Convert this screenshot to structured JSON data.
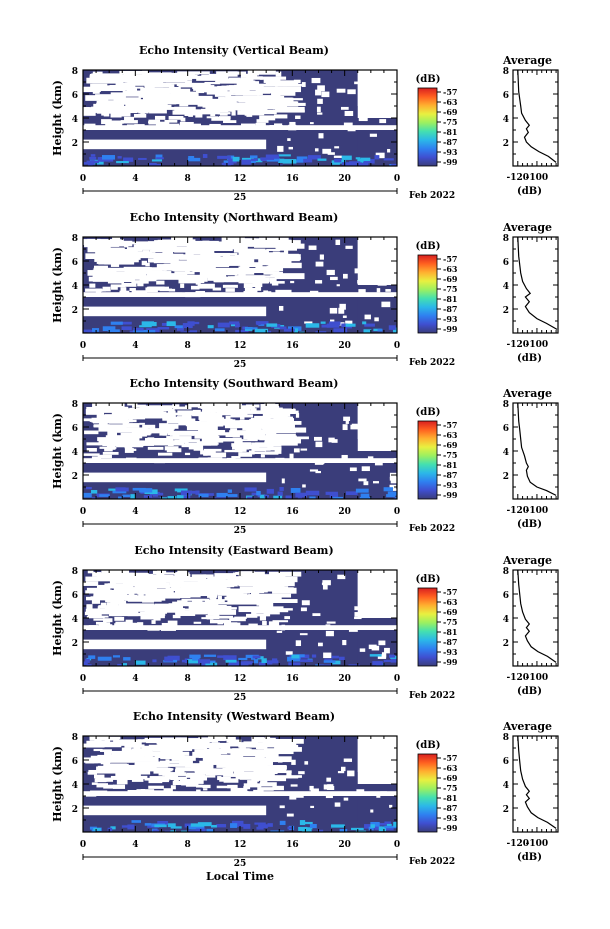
{
  "figure": {
    "xlabel": "Local Time",
    "date_label": "Feb 2022",
    "day_label": "25",
    "colorbar_unit": "(dB)",
    "colorbar_ticks": [
      "-57",
      "-63",
      "-69",
      "-75",
      "-81",
      "-87",
      "-93",
      "-99"
    ],
    "colorbar_colors": [
      "#3a3d7a",
      "#3f4fd0",
      "#2f80f0",
      "#2bb8e8",
      "#44e0b0",
      "#9cf060",
      "#e8f040",
      "#ffb030",
      "#ff6020",
      "#d82020"
    ],
    "fill_color": "#3a3d7a",
    "avg_title": "Average",
    "avg_xlabel": "(dB)"
  },
  "chart_data": [
    {
      "type": "heatmap",
      "title": "Echo Intensity (Vertical Beam)",
      "ylabel": "Height (km)",
      "xlim": [
        0,
        24
      ],
      "ylim": [
        0,
        8
      ],
      "xticks": [
        "0",
        "4",
        "8",
        "12",
        "16",
        "20",
        "0"
      ],
      "yticks": [
        "2",
        "4",
        "6",
        "8"
      ],
      "colorbar_range": [
        -99,
        -57
      ],
      "colorbar_unit": "(dB)",
      "average": {
        "title": "Average",
        "xlabel": "(dB)",
        "xticks": [
          "-120",
          "-100"
        ],
        "yticks": [
          "2",
          "4",
          "6",
          "8"
        ],
        "profile": [
          [
            -80,
            0.3
          ],
          [
            -88,
            0.8
          ],
          [
            -98,
            1.2
          ],
          [
            -106,
            1.6
          ],
          [
            -111,
            2.0
          ],
          [
            -113,
            2.4
          ],
          [
            -109,
            2.8
          ],
          [
            -111,
            3.1
          ],
          [
            -108,
            3.4
          ],
          [
            -112,
            3.8
          ],
          [
            -116,
            4.4
          ],
          [
            -117,
            5.0
          ],
          [
            -118,
            5.6
          ],
          [
            -119,
            6.2
          ],
          [
            -119.5,
            7.0
          ],
          [
            -120,
            8.0
          ]
        ]
      }
    },
    {
      "type": "heatmap",
      "title": "Echo Intensity (Northward Beam)",
      "ylabel": "Height (km)",
      "xlim": [
        0,
        24
      ],
      "ylim": [
        0,
        8
      ],
      "xticks": [
        "0",
        "4",
        "8",
        "12",
        "16",
        "20",
        "0"
      ],
      "yticks": [
        "2",
        "4",
        "6",
        "8"
      ],
      "colorbar_range": [
        -99,
        -57
      ],
      "colorbar_unit": "(dB)",
      "average": {
        "title": "Average",
        "xlabel": "(dB)",
        "xticks": [
          "-120",
          "-100"
        ],
        "yticks": [
          "2",
          "4",
          "6",
          "8"
        ],
        "profile": [
          [
            -79,
            0.3
          ],
          [
            -90,
            0.8
          ],
          [
            -100,
            1.2
          ],
          [
            -108,
            1.7
          ],
          [
            -112,
            2.2
          ],
          [
            -108,
            2.6
          ],
          [
            -112,
            3.0
          ],
          [
            -107,
            3.3
          ],
          [
            -111,
            3.7
          ],
          [
            -115,
            4.3
          ],
          [
            -117,
            5.0
          ],
          [
            -118,
            5.7
          ],
          [
            -119,
            6.4
          ],
          [
            -120,
            8.0
          ]
        ]
      }
    },
    {
      "type": "heatmap",
      "title": "Echo Intensity (Southward Beam)",
      "ylabel": "Height (km)",
      "xlim": [
        0,
        24
      ],
      "ylim": [
        0,
        8
      ],
      "xticks": [
        "0",
        "4",
        "8",
        "12",
        "16",
        "20",
        "0"
      ],
      "yticks": [
        "2",
        "4",
        "6",
        "8"
      ],
      "colorbar_range": [
        -99,
        -57
      ],
      "colorbar_unit": "(dB)",
      "average": {
        "title": "Average",
        "xlabel": "(dB)",
        "xticks": [
          "-120",
          "-100"
        ],
        "yticks": [
          "2",
          "4",
          "6",
          "8"
        ],
        "profile": [
          [
            -80,
            0.3
          ],
          [
            -90,
            0.7
          ],
          [
            -100,
            1.0
          ],
          [
            -107,
            1.4
          ],
          [
            -110,
            1.9
          ],
          [
            -111,
            2.4
          ],
          [
            -109,
            2.7
          ],
          [
            -111,
            3.0
          ],
          [
            -113,
            3.6
          ],
          [
            -116,
            4.3
          ],
          [
            -117,
            5.0
          ],
          [
            -118,
            5.8
          ],
          [
            -119,
            6.5
          ],
          [
            -120,
            8.0
          ]
        ]
      }
    },
    {
      "type": "heatmap",
      "title": "Echo Intensity (Eastward Beam)",
      "ylabel": "Height (km)",
      "xlim": [
        0,
        24
      ],
      "ylim": [
        0,
        8
      ],
      "xticks": [
        "0",
        "4",
        "8",
        "12",
        "16",
        "20",
        "0"
      ],
      "yticks": [
        "2",
        "4",
        "6",
        "8"
      ],
      "colorbar_range": [
        -99,
        -57
      ],
      "colorbar_unit": "(dB)",
      "average": {
        "title": "Average",
        "xlabel": "(dB)",
        "xticks": [
          "-120",
          "-100"
        ],
        "yticks": [
          "2",
          "4",
          "6",
          "8"
        ],
        "profile": [
          [
            -80,
            0.3
          ],
          [
            -89,
            0.8
          ],
          [
            -99,
            1.2
          ],
          [
            -106,
            1.6
          ],
          [
            -110,
            2.1
          ],
          [
            -112,
            2.5
          ],
          [
            -108,
            2.9
          ],
          [
            -111,
            3.2
          ],
          [
            -108,
            3.5
          ],
          [
            -112,
            3.9
          ],
          [
            -115,
            4.5
          ],
          [
            -117,
            5.2
          ],
          [
            -118,
            6.0
          ],
          [
            -119,
            6.8
          ],
          [
            -120,
            8.0
          ]
        ]
      }
    },
    {
      "type": "heatmap",
      "title": "Echo Intensity (Westward Beam)",
      "ylabel": "Height (km)",
      "xlim": [
        0,
        24
      ],
      "ylim": [
        0,
        8
      ],
      "xticks": [
        "0",
        "4",
        "8",
        "12",
        "16",
        "20",
        "0"
      ],
      "yticks": [
        "2",
        "4",
        "6",
        "8"
      ],
      "colorbar_range": [
        -99,
        -57
      ],
      "colorbar_unit": "(dB)",
      "average": {
        "title": "Average",
        "xlabel": "(dB)",
        "xticks": [
          "-120",
          "-100"
        ],
        "yticks": [
          "2",
          "4",
          "6",
          "8"
        ],
        "profile": [
          [
            -80,
            0.3
          ],
          [
            -89,
            0.8
          ],
          [
            -99,
            1.2
          ],
          [
            -106,
            1.6
          ],
          [
            -110,
            2.1
          ],
          [
            -112,
            2.5
          ],
          [
            -108,
            2.8
          ],
          [
            -111,
            3.1
          ],
          [
            -108,
            3.4
          ],
          [
            -112,
            3.8
          ],
          [
            -115,
            4.4
          ],
          [
            -117,
            5.1
          ],
          [
            -118,
            5.9
          ],
          [
            -119,
            6.8
          ],
          [
            -120,
            8.0
          ]
        ]
      }
    }
  ]
}
